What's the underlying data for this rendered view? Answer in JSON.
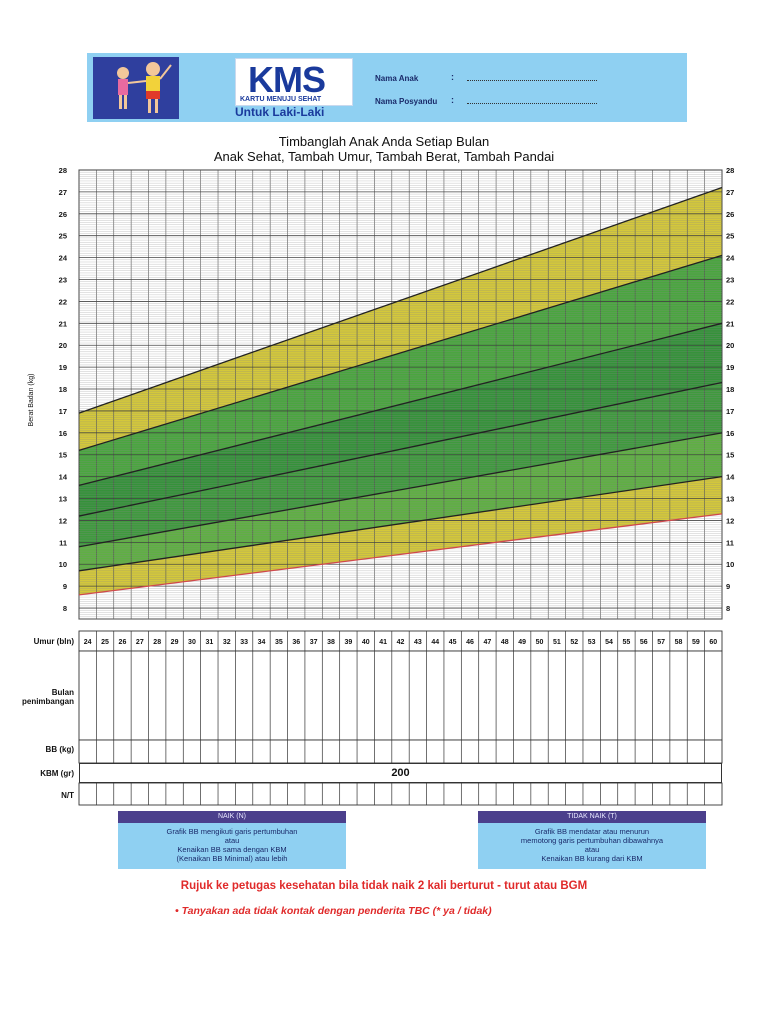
{
  "header": {
    "logo": "KMS",
    "logo_sub": "KARTU MENUJU SEHAT",
    "gender_label": "Untuk Laki-Laki",
    "field_child": "Nama Anak",
    "field_posyandu": "Nama Posyandu",
    "colon": ":",
    "colors": {
      "header_bg": "#8fd0f2",
      "logo_text": "#1a3a9c"
    }
  },
  "titles": {
    "line1": "Timbanglah Anak Anda Setiap Bulan",
    "line2": "Anak Sehat, Tambah Umur, Tambah Berat, Tambah Pandai"
  },
  "chart_data": {
    "type": "area",
    "title": "Timbanglah Anak Anda Setiap Bulan",
    "ylabel": "Berat Badan (kg)",
    "xlabel": "Umur (bln)",
    "x": [
      24,
      25,
      26,
      27,
      28,
      29,
      30,
      31,
      32,
      33,
      34,
      35,
      36,
      37,
      38,
      39,
      40,
      41,
      42,
      43,
      44,
      45,
      46,
      47,
      48,
      49,
      50,
      51,
      52,
      53,
      54,
      55,
      56,
      57,
      58,
      59,
      60
    ],
    "xlim": [
      24,
      60
    ],
    "ylim": [
      7.5,
      28
    ],
    "yticks": [
      8,
      9,
      10,
      11,
      12,
      13,
      14,
      15,
      16,
      17,
      18,
      19,
      20,
      21,
      22,
      23,
      24,
      25,
      26,
      27,
      28
    ],
    "grid": true,
    "growth_lines": [
      {
        "name": "line-1",
        "start": 8.6,
        "end": 12.3,
        "color": "#d0484d"
      },
      {
        "name": "line-2",
        "start": 9.7,
        "end": 14.0,
        "color": "#222222"
      },
      {
        "name": "line-3",
        "start": 10.8,
        "end": 16.0,
        "color": "#222222"
      },
      {
        "name": "line-4",
        "start": 12.2,
        "end": 18.3,
        "color": "#222222"
      },
      {
        "name": "line-5",
        "start": 13.6,
        "end": 21.0,
        "color": "#222222"
      },
      {
        "name": "line-6",
        "start": 15.2,
        "end": 24.1,
        "color": "#222222"
      },
      {
        "name": "line-7",
        "start": 16.9,
        "end": 27.2,
        "color": "#222222"
      }
    ],
    "bands": [
      {
        "from": "line-1",
        "to": "line-2",
        "color": "#d4c83a"
      },
      {
        "from": "line-2",
        "to": "line-3",
        "color": "#5fb043"
      },
      {
        "from": "line-3",
        "to": "line-4",
        "color": "#3f9a3e"
      },
      {
        "from": "line-4",
        "to": "line-5",
        "color": "#35923a"
      },
      {
        "from": "line-5",
        "to": "line-6",
        "color": "#4aa63f"
      },
      {
        "from": "line-6",
        "to": "line-7",
        "color": "#d4c83a"
      }
    ]
  },
  "table": {
    "age_label": "Umur (bln)",
    "month_label": "Bulan penimbangan",
    "bb_label": "BB (kg)",
    "kbm_label": "KBM (gr)",
    "kbm_value": "200",
    "nt_label": "N/T"
  },
  "legend": {
    "naik": {
      "title": "NAIK (N)",
      "l1": "Grafik BB mengikuti garis pertumbuhan",
      "l2": "atau",
      "l3": "Kenaikan BB sama dengan KBM",
      "l4": "(Kenaikan BB Minimal) atau lebih"
    },
    "tidak_naik": {
      "title": "TIDAK NAIK (T)",
      "l1": "Grafik BB mendatar atau menurun",
      "l2": "memotong garis pertumbuhan dibawahnya",
      "l3": "atau",
      "l4": "Kenaikan BB kurang dari KBM"
    }
  },
  "footer": {
    "refer": "Rujuk ke petugas kesehatan bila tidak naik 2 kali berturut - turut atau BGM",
    "tbc": "•  Tanyakan ada tidak kontak dengan penderita TBC (* ya / tidak)"
  }
}
